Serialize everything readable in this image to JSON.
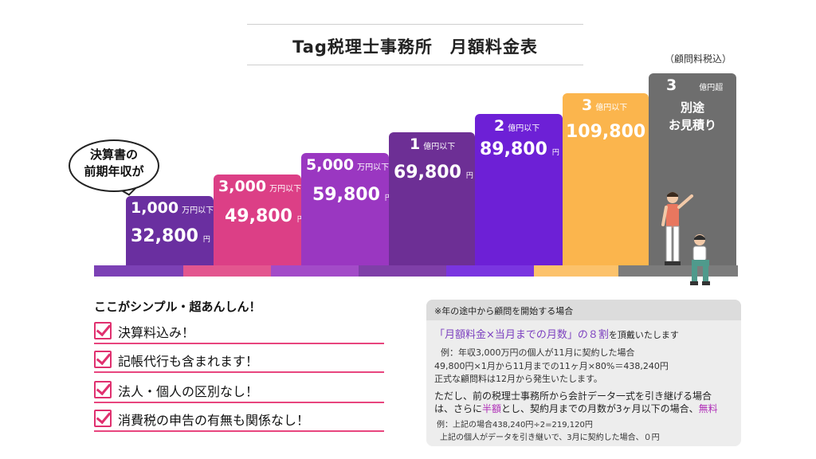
{
  "title": "Tag税理士事務所　月額料金表",
  "tax_note": "（顧問料税込）",
  "bubble": {
    "line1": "決算書の",
    "line2": "前期年収が"
  },
  "tiers": [
    {
      "level": "1,000",
      "unit": "万円以下",
      "price": "32,800",
      "yen": "円",
      "color": "#6a2fa0"
    },
    {
      "level": "3,000",
      "unit": "万円以下",
      "price": "49,800",
      "yen": "円",
      "color": "#dc3f86"
    },
    {
      "level": "5,000",
      "unit": "万円以下",
      "price": "59,800",
      "yen": "円",
      "color": "#9a37c1"
    },
    {
      "level": "1",
      "unit": "億円以下",
      "price": "69,800",
      "yen": "円",
      "color": "#6d2f95"
    },
    {
      "level": "2",
      "unit": "億円以下",
      "price": "89,800",
      "yen": "円",
      "color": "#6d20d6"
    },
    {
      "level": "3",
      "unit": "億円以下",
      "price": "109,800",
      "yen": "円",
      "color": "#fbb54d"
    },
    {
      "level": "3",
      "unit": "億円超",
      "price_line1": "別途",
      "price_line2": "お見積り",
      "color": "#6e6e6e"
    }
  ],
  "features": {
    "heading": "ここがシンプル・超あんしん！",
    "items": [
      "決算料込み！",
      "記帳代行も含まれます！",
      "法人・個人の区別なし！",
      "消費税の申告の有無も関係なし！"
    ]
  },
  "info": {
    "head": "※年の途中から顧問を開始する場合",
    "rule_highlight": "「月額料金×当月までの月数」の８割",
    "rule_suffix": "を頂戴いたします",
    "example1": "例：年収3,000万円の個人が11月に契約した場合",
    "example2": "49,800円×1月から11月までの11ヶ月×80%＝438,240円",
    "example3": "正式な顧問料は12月から発生いたします。",
    "note1": "ただし、前の税理士事務所から会計データ一式を引き継げる場合",
    "note2_a": "は、さらに",
    "note2_hl1": "半額",
    "note2_b": "とし、契約月までの月数が3ヶ月以下の場合、",
    "note2_hl2": "無料",
    "example4": "例：上記の場合438,240円÷2=219,120円",
    "example5": "上記の個人がデータを引き継いで、3月に契約した場合、０円"
  }
}
